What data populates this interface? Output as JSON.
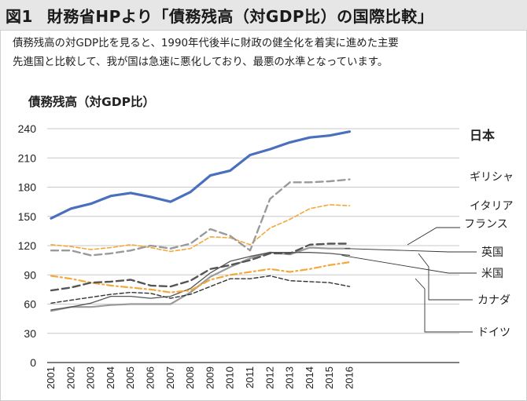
{
  "figure": {
    "number": "図1",
    "title": "財務省HPより「債務残高（対GDP比）の国際比較」",
    "subtitle_line1": "債務残高の対GDP比を見ると、1990年代後半に財政の健全化を着実に進めた主要",
    "subtitle_line2": "先進国と比較して、我が国は急速に悪化しており、最悪の水準となっています。"
  },
  "chart_data": {
    "type": "line",
    "title": "債務残高（対GDP比）",
    "ylabel": "債務残高（対GDP比）",
    "xlabel": "",
    "ylim": [
      0,
      240
    ],
    "yticks": [
      0,
      30,
      60,
      90,
      120,
      150,
      180,
      210,
      240
    ],
    "grid": "horizontal",
    "x": [
      "2001",
      "2002",
      "2003",
      "2004",
      "2005",
      "2006",
      "2007",
      "2008",
      "2009",
      "2010",
      "2011",
      "2012",
      "2013",
      "2014",
      "2015",
      "2016"
    ],
    "series": [
      {
        "name": "日本",
        "color": "#4a6fbd",
        "style": "solid-thick",
        "values": [
          148,
          158,
          163,
          171,
          174,
          170,
          165,
          175,
          192,
          197,
          213,
          219,
          226,
          231,
          233,
          237
        ]
      },
      {
        "name": "ギリシャ",
        "color": "#9a9a9a",
        "style": "dash-long",
        "values": [
          115,
          115,
          110,
          112,
          115,
          120,
          117,
          122,
          137,
          130,
          115,
          168,
          185,
          185,
          186,
          188
        ]
      },
      {
        "name": "イタリア",
        "color": "#f4a83a",
        "style": "dash-short",
        "values": [
          121,
          119,
          116,
          118,
          121,
          118,
          114,
          117,
          129,
          128,
          121,
          138,
          147,
          158,
          162,
          161
        ]
      },
      {
        "name": "フランス",
        "color": "#555555",
        "style": "dash-long",
        "values": [
          74,
          77,
          82,
          83,
          85,
          79,
          78,
          84,
          96,
          100,
          105,
          112,
          112,
          121,
          122,
          122
        ]
      },
      {
        "name": "英国",
        "color": "#9a9a9a",
        "style": "solid",
        "values": [
          53,
          57,
          57,
          59,
          60,
          60,
          60,
          72,
          88,
          98,
          107,
          113,
          111,
          118,
          117,
          117
        ]
      },
      {
        "name": "米国",
        "color": "#555555",
        "style": "solid-thin",
        "values": [
          54,
          57,
          61,
          68,
          68,
          66,
          68,
          76,
          92,
          104,
          109,
          113,
          113,
          113,
          112,
          110
        ]
      },
      {
        "name": "カナダ",
        "color": "#f4a83a",
        "style": "dash-dot",
        "values": [
          89,
          86,
          82,
          79,
          77,
          75,
          72,
          74,
          85,
          90,
          93,
          96,
          93,
          96,
          100,
          103
        ]
      },
      {
        "name": "ドイツ",
        "color": "#333333",
        "style": "dash-fine",
        "values": [
          61,
          64,
          67,
          70,
          72,
          71,
          66,
          70,
          78,
          86,
          86,
          89,
          84,
          83,
          82,
          78
        ]
      }
    ],
    "labels": [
      "日本",
      "ギリシャ",
      "イタリア",
      "フランス",
      "英国",
      "米国",
      "カナダ",
      "ドイツ"
    ]
  }
}
